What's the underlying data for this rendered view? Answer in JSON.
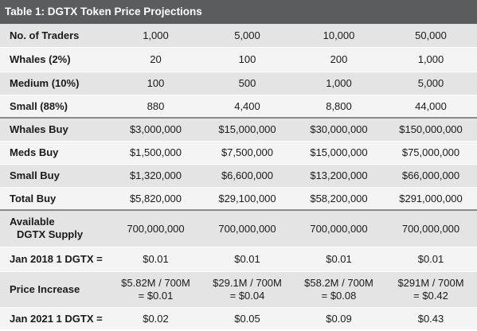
{
  "title": "Table 1: DGTX Token Price Projections",
  "rows": [
    {
      "label": "No. of Traders",
      "values": [
        "1,000",
        "5,000",
        "10,000",
        "50,000"
      ]
    },
    {
      "label": "Whales (2%)",
      "values": [
        "20",
        "100",
        "200",
        "1,000"
      ]
    },
    {
      "label": "Medium (10%)",
      "values": [
        "100",
        "500",
        "1,000",
        "5,000"
      ]
    },
    {
      "label": "Small (88%)",
      "values": [
        "880",
        "4,400",
        "8,800",
        "44,000"
      ]
    },
    {
      "label": "Whales Buy",
      "values": [
        "$3,000,000",
        "$15,000,000",
        "$30,000,000",
        "$150,000,000"
      ]
    },
    {
      "label": "Meds Buy",
      "values": [
        "$1,500,000",
        "$7,500,000",
        "$15,000,000",
        "$75,000,000"
      ]
    },
    {
      "label": "Small Buy",
      "values": [
        "$1,320,000",
        "$6,600,000",
        "$13,200,000",
        "$66,000,000"
      ]
    },
    {
      "label": "Total Buy",
      "values": [
        "$5,820,000",
        "$29,100,000",
        "$58,200,000",
        "$291,000,000"
      ]
    },
    {
      "label_line1": "Available",
      "label_line2": "DGTX Supply",
      "values": [
        "700,000,000",
        "700,000,000",
        "700,000,000",
        "700,000,000"
      ]
    },
    {
      "label": "Jan 2018 1 DGTX =",
      "values": [
        "$0.01",
        "$0.01",
        "$0.01",
        "$0.01"
      ]
    },
    {
      "label": "Price Increase",
      "values_line1": [
        "$5.82M / 700M",
        "$29.1M / 700M",
        "$58.2M / 700M",
        "$291M / 700M"
      ],
      "values_line2": [
        "= $0.01",
        "= $0.04",
        "= $0.08",
        "= $0.42"
      ]
    },
    {
      "label": "Jan 2021 1 DGTX =",
      "values": [
        "$0.02",
        "$0.05",
        "$0.09",
        "$0.43"
      ]
    }
  ]
}
